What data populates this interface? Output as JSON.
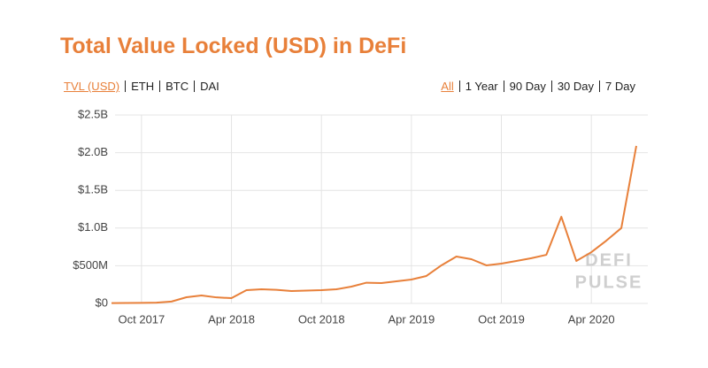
{
  "chart_data": {
    "type": "line",
    "title": "Total Value Locked (USD) in DeFi",
    "tabs_left": [
      "TVL (USD)",
      "ETH",
      "BTC",
      "DAI"
    ],
    "tabs_right": [
      "All",
      "1 Year",
      "90 Day",
      "30 Day",
      "7 Day"
    ],
    "watermark": [
      "DEFI",
      "PULSE"
    ],
    "color": "#e8803a",
    "x": [
      "2017-08",
      "2017-09",
      "2017-10",
      "2017-11",
      "2017-12",
      "2018-01",
      "2018-02",
      "2018-03",
      "2018-04",
      "2018-05",
      "2018-06",
      "2018-07",
      "2018-08",
      "2018-09",
      "2018-10",
      "2018-11",
      "2018-12",
      "2019-01",
      "2019-02",
      "2019-03",
      "2019-04",
      "2019-05",
      "2019-06",
      "2019-07",
      "2019-08",
      "2019-09",
      "2019-10",
      "2019-11",
      "2019-12",
      "2020-01",
      "2020-02",
      "2020-03",
      "2020-04",
      "2020-05",
      "2020-06",
      "2020-07"
    ],
    "values": [
      5000000,
      6000000,
      8000000,
      10000000,
      25000000,
      82000000,
      105000000,
      80000000,
      70000000,
      176000000,
      188000000,
      180000000,
      165000000,
      170000000,
      176000000,
      188000000,
      223000000,
      275000000,
      270000000,
      293000000,
      317000000,
      364000000,
      505000000,
      622000000,
      587000000,
      505000000,
      528000000,
      563000000,
      600000000,
      645000000,
      1150000000,
      563000000,
      680000000,
      833000000,
      1000000000,
      2090000000
    ],
    "xlim": [
      "2017-08",
      "2020-07"
    ],
    "xticks": [
      {
        "value": "2017-10",
        "label": "Oct 2017"
      },
      {
        "value": "2018-04",
        "label": "Apr 2018"
      },
      {
        "value": "2018-10",
        "label": "Oct 2018"
      },
      {
        "value": "2019-04",
        "label": "Apr 2019"
      },
      {
        "value": "2019-10",
        "label": "Oct 2019"
      },
      {
        "value": "2020-04",
        "label": "Apr 2020"
      }
    ],
    "ylim": [
      0,
      2500000000
    ],
    "yticks": [
      {
        "value": 0,
        "label": "$0"
      },
      {
        "value": 500000000,
        "label": "$500M"
      },
      {
        "value": 1000000000,
        "label": "$1.0B"
      },
      {
        "value": 1500000000,
        "label": "$1.5B"
      },
      {
        "value": 2000000000,
        "label": "$2.0B"
      },
      {
        "value": 2500000000,
        "label": "$2.5B"
      }
    ],
    "grid": true
  }
}
